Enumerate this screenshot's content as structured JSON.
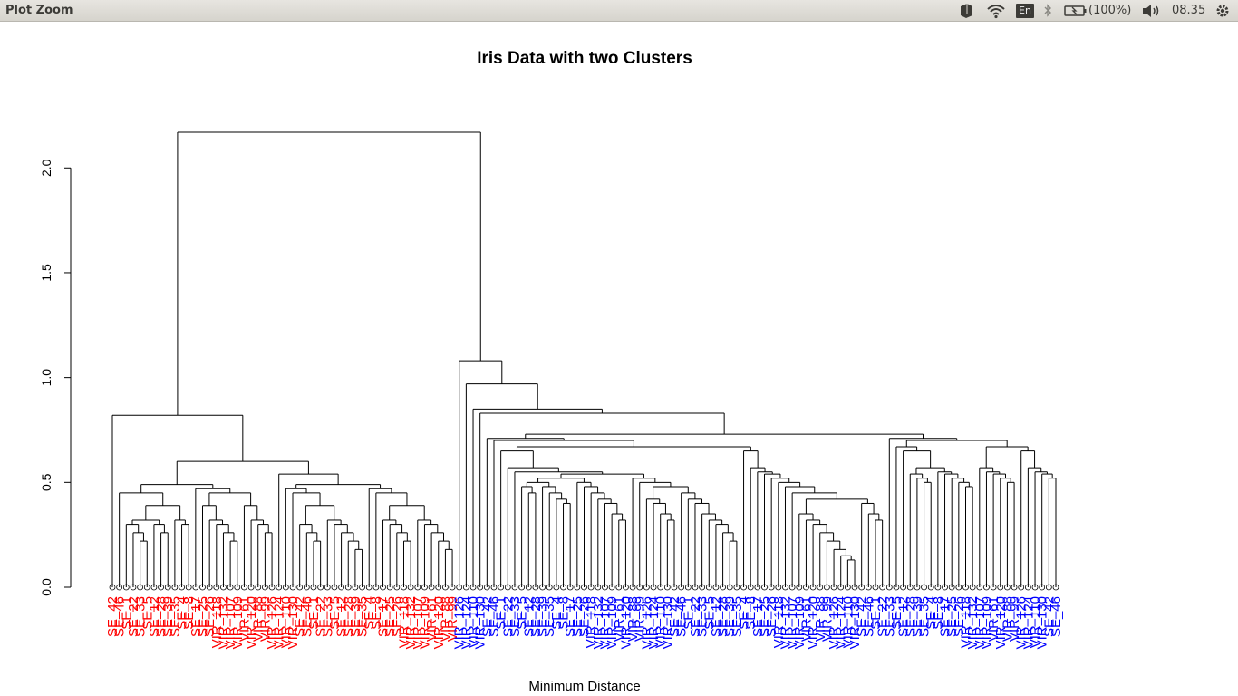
{
  "window": {
    "title": "Plot Zoom"
  },
  "tray": {
    "language": "En",
    "battery": "(100%)",
    "clock": "08.35",
    "icons": [
      "dropbox-icon",
      "wifi-icon",
      "bluetooth-icon",
      "battery-icon",
      "volume-icon",
      "settings-gear-icon"
    ]
  },
  "colors": {
    "setosa_label": "#ff0000",
    "other_label": "#0000ff",
    "lines": "#000000"
  },
  "chart_data": {
    "type": "dendrogram",
    "title": "Iris Data with two Clusters",
    "xlabel": "Minimum Distance",
    "ylabel": "",
    "ylim": [
      0,
      2.2
    ],
    "y_ticks": [
      "0.0",
      "0.5",
      "1.0",
      "1.5",
      "2.0"
    ],
    "leaf_label_orientation": "vertical",
    "clusters": [
      {
        "color": "#ff0000",
        "leaf_count": 50,
        "label_prefix": "SE"
      },
      {
        "color": "#0000ff",
        "leaf_count": 87,
        "label_prefix": "VI"
      }
    ],
    "merge_heights_left_group": [
      0.82,
      0.6,
      0.54,
      0.47,
      0.45,
      0.45,
      0.39,
      0.3,
      0.3,
      0.26,
      0.22,
      0.18,
      0.18,
      0.13
    ],
    "merge_heights_right_group": [
      1.08,
      0.97,
      0.85,
      0.83,
      0.73,
      0.71,
      0.7,
      0.67,
      0.65,
      0.57,
      0.55,
      0.54,
      0.52,
      0.5,
      0.48,
      0.45,
      0.42,
      0.4,
      0.35,
      0.32,
      0.3,
      0.26,
      0.22,
      0.18,
      0.13
    ],
    "root_height": 2.17,
    "leaf_labels_visible": [
      "SE_42",
      "SE_46",
      "SE_1",
      "SE_22",
      "SE_33",
      "SE_5",
      "SE_12",
      "SE_28",
      "SE_39",
      "SE_35",
      "SE_4",
      "SE_8",
      "SE_17",
      "SE_25",
      "SE_26",
      "VIR_118",
      "VIR_132",
      "VIR_107",
      "VIR_109",
      "VIR_61",
      "VIR_120",
      "VIR_88",
      "VIR_99",
      "VIR_126",
      "VIR_124",
      "VIR_110",
      "VIR_130"
    ]
  }
}
